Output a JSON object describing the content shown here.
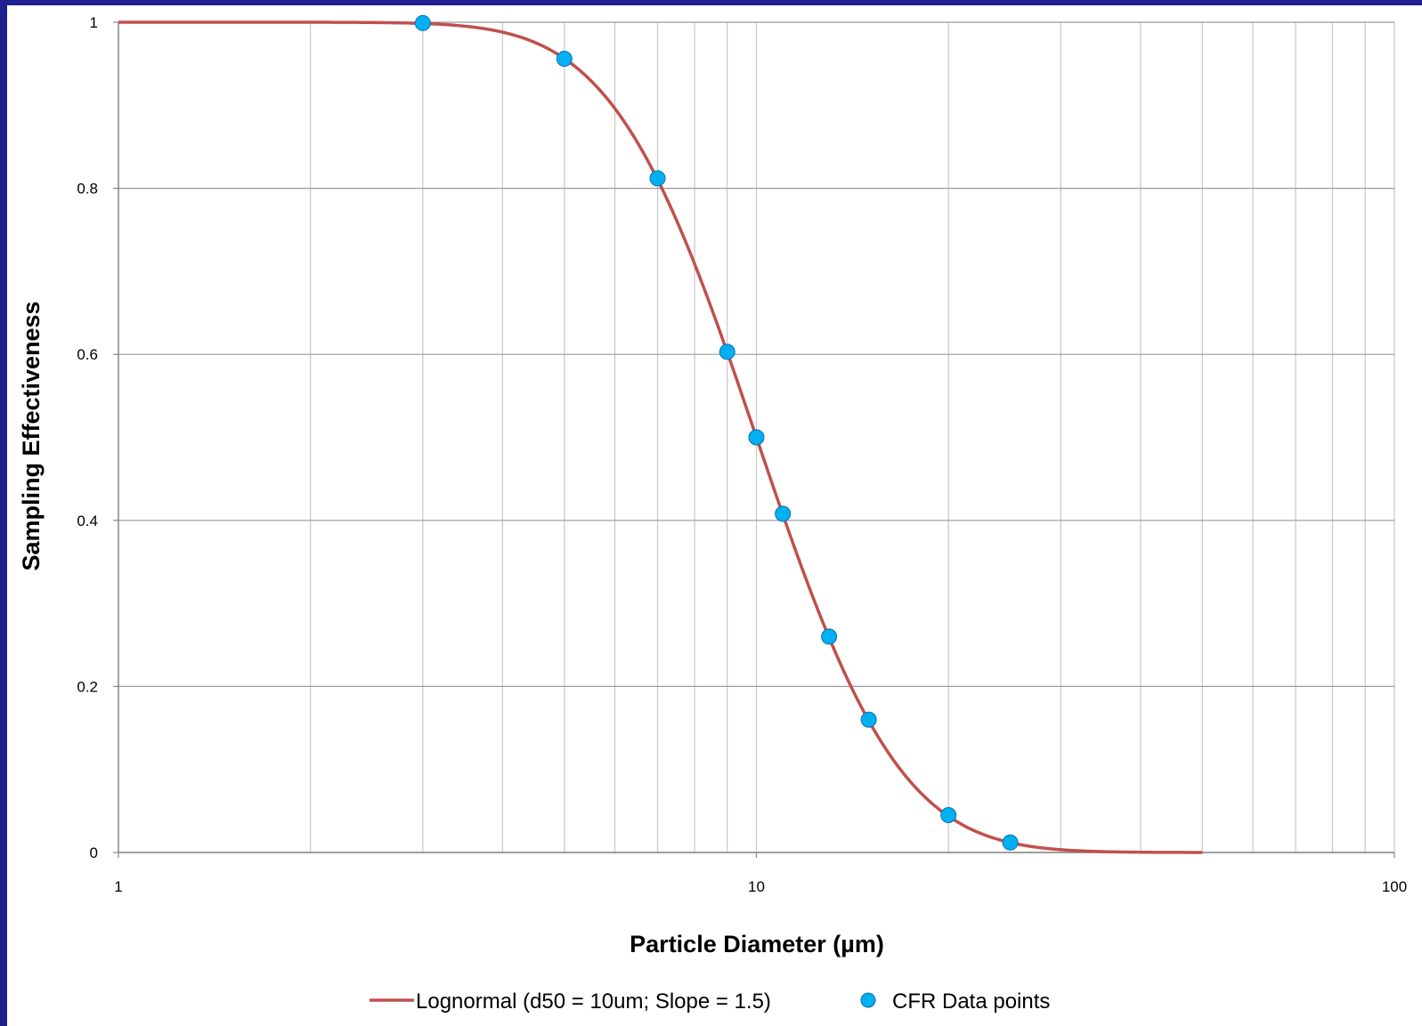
{
  "chart_data": {
    "type": "line",
    "xscale": "log",
    "xlabel": "Particle Diameter (µm)",
    "ylabel": "Sampling Effectiveness",
    "xlim": [
      1,
      100
    ],
    "ylim": [
      0,
      1
    ],
    "x_ticks": [
      "1",
      "10",
      "100"
    ],
    "y_ticks": [
      "0",
      "0.2",
      "0.4",
      "0.6",
      "0.8",
      "1"
    ],
    "grid": true,
    "legend_position": "bottom",
    "series": [
      {
        "name": "Lognormal (d50 = 10um; Slope = 1.5)",
        "kind": "line",
        "color": "#c0504d",
        "d50": 10,
        "slope": 1.5,
        "x_range": [
          1,
          50
        ]
      },
      {
        "name": "CFR Data points",
        "kind": "scatter",
        "color": "#00b0f0",
        "x": [
          3,
          5,
          7,
          9,
          10,
          11,
          13,
          15,
          20,
          25
        ],
        "y": [
          0.999,
          0.956,
          0.812,
          0.603,
          0.5,
          0.408,
          0.26,
          0.16,
          0.045,
          0.012
        ]
      }
    ]
  }
}
